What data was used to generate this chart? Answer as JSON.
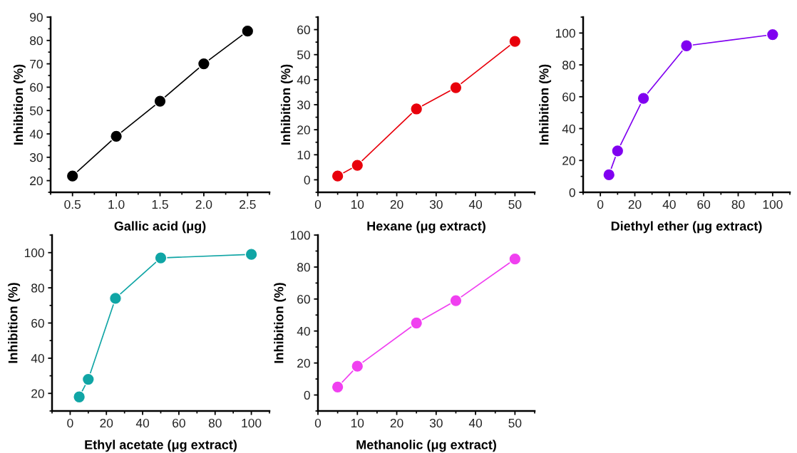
{
  "chart_data": [
    {
      "type": "line",
      "xlabel": "Gallic acid (μg)",
      "ylabel": "Inhibition (%)",
      "x": [
        0.5,
        1.0,
        1.5,
        2.0,
        2.5
      ],
      "series": [
        {
          "color": "#000000",
          "values": [
            22,
            39,
            54,
            70,
            84
          ]
        }
      ],
      "xlim": [
        0.25,
        2.75
      ],
      "ylim": [
        15,
        90
      ],
      "xticks": [
        {
          "value": 0.5,
          "label": "0.5"
        },
        {
          "value": 1.0,
          "label": "1.0"
        },
        {
          "value": 1.5,
          "label": "1.5"
        },
        {
          "value": 2.0,
          "label": "2.0"
        },
        {
          "value": 2.5,
          "label": "2.5"
        }
      ],
      "yticks": [
        20,
        30,
        40,
        50,
        60,
        70,
        80,
        90
      ],
      "marker": "circle",
      "grid": false
    },
    {
      "type": "line",
      "xlabel": "Hexane (μg extract)",
      "ylabel": "Inhibition (%)",
      "x": [
        5,
        10,
        25,
        35,
        50
      ],
      "series": [
        {
          "color": "#e8000b",
          "values": [
            1.5,
            5.8,
            28.3,
            36.8,
            55.3
          ]
        }
      ],
      "xlim": [
        0,
        55
      ],
      "ylim": [
        -5,
        65
      ],
      "xticks": [
        0,
        10,
        20,
        30,
        40,
        50
      ],
      "yticks": [
        0,
        10,
        20,
        30,
        40,
        50,
        60
      ],
      "marker": "circle",
      "grid": false
    },
    {
      "type": "line",
      "xlabel": "Diethyl ether (μg extract)",
      "ylabel": "Inhibition (%)",
      "x": [
        5,
        10,
        25,
        50,
        100
      ],
      "series": [
        {
          "color": "#8000f0",
          "values": [
            11,
            26,
            59,
            92,
            99
          ]
        }
      ],
      "xlim": [
        -10,
        110
      ],
      "ylim": [
        0,
        110
      ],
      "xticks": [
        0,
        20,
        40,
        60,
        80,
        100
      ],
      "yticks": [
        0,
        20,
        40,
        60,
        80,
        100
      ],
      "marker": "circle",
      "grid": false
    },
    {
      "type": "line",
      "xlabel": "Ethyl acetate (μg extract)",
      "ylabel": "Inhibition (%)",
      "x": [
        5,
        10,
        25,
        50,
        100
      ],
      "series": [
        {
          "color": "#10a5a5",
          "values": [
            18,
            28,
            74,
            97,
            99
          ]
        }
      ],
      "xlim": [
        -10,
        110
      ],
      "ylim": [
        10,
        110
      ],
      "xticks": [
        0,
        20,
        40,
        60,
        80,
        100
      ],
      "yticks": [
        20,
        40,
        60,
        80,
        100
      ],
      "marker": "circle",
      "grid": false
    },
    {
      "type": "line",
      "xlabel": "Methanolic (μg extract)",
      "ylabel": "Inhibition (%)",
      "x": [
        5,
        10,
        25,
        35,
        50
      ],
      "series": [
        {
          "color": "#f040f0",
          "values": [
            5,
            18,
            45,
            59,
            85
          ]
        }
      ],
      "xlim": [
        0,
        55
      ],
      "ylim": [
        -10,
        100
      ],
      "xticks": [
        0,
        10,
        20,
        30,
        40,
        50
      ],
      "yticks": [
        0,
        20,
        40,
        60,
        80,
        100
      ],
      "marker": "circle",
      "grid": false
    }
  ]
}
